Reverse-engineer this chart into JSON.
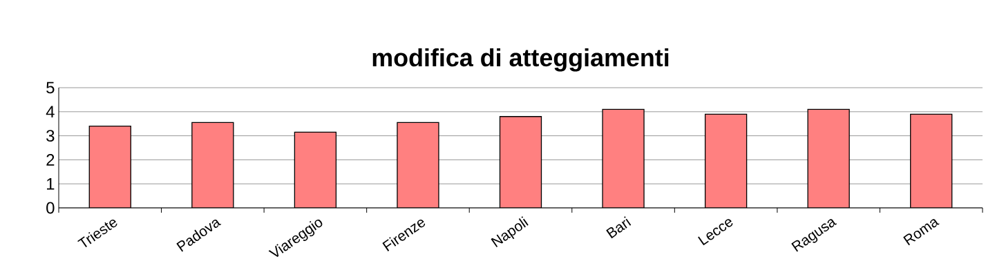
{
  "chart_data": {
    "type": "bar",
    "title": "modifica di atteggiamenti",
    "categories": [
      "Trieste",
      "Padova",
      "Viareggio",
      "Firenze",
      "Napoli",
      "Bari",
      "Lecce",
      "Ragusa",
      "Roma"
    ],
    "values": [
      3.4,
      3.55,
      3.15,
      3.55,
      3.8,
      4.1,
      3.9,
      4.1,
      3.9
    ],
    "color": "#ff8080",
    "ylim": [
      0,
      5
    ],
    "yticks": [
      0,
      1,
      2,
      3,
      4,
      5
    ],
    "grid": "y"
  }
}
